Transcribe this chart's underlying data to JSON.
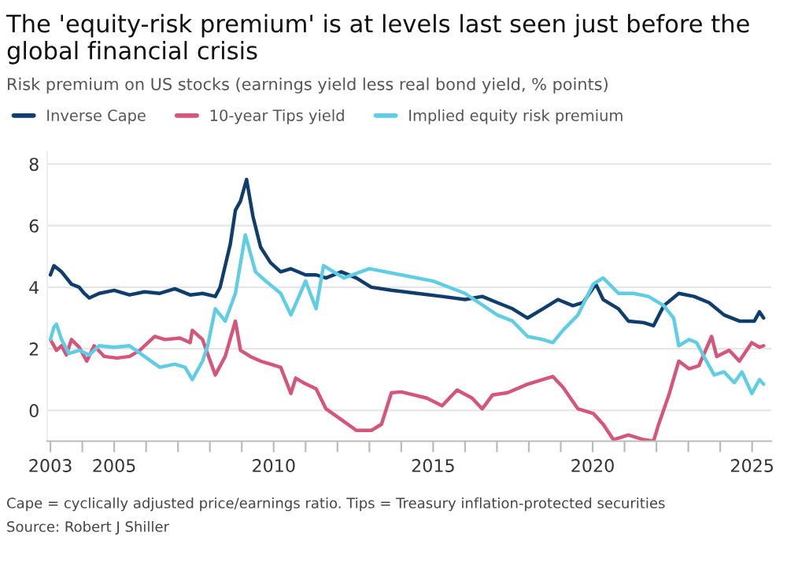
{
  "chart_data": {
    "type": "line",
    "title": "The 'equity-risk premium' is at levels last seen just before the global financial crisis",
    "subtitle": "Risk premium on US stocks (earnings yield less real bond yield, % points)",
    "annotations": [
      "Cape = cyclically adjusted price/earnings ratio. Tips = Treasury inflation-protected securities",
      "Source: Robert J Shiller"
    ],
    "xlim": [
      2002.9,
      2025.6
    ],
    "xticks": [
      2003,
      {
        "value": 2004,
        "label": null
      },
      2005,
      {
        "value": 2006,
        "label": null
      },
      {
        "value": 2007,
        "label": null
      },
      {
        "value": 2008,
        "label": null
      },
      {
        "value": 2009,
        "label": null
      },
      2010,
      {
        "value": 2011,
        "label": null
      },
      {
        "value": 2012,
        "label": null
      },
      {
        "value": 2013,
        "label": null
      },
      {
        "value": 2014,
        "label": null
      },
      2015,
      {
        "value": 2016,
        "label": null
      },
      {
        "value": 2017,
        "label": null
      },
      {
        "value": 2018,
        "label": null
      },
      {
        "value": 2019,
        "label": null
      },
      2020,
      {
        "value": 2021,
        "label": null
      },
      {
        "value": 2022,
        "label": null
      },
      {
        "value": 2023,
        "label": null
      },
      {
        "value": 2024,
        "label": null
      },
      2025
    ],
    "ylim": [
      -1,
      8.4
    ],
    "yticks": [
      0,
      2,
      4,
      6,
      8
    ],
    "grid": "y",
    "legend": "top",
    "line_style": "solid",
    "series": [
      {
        "name": "Inverse Cape",
        "color": "#0f3d6e",
        "x": [
          2003.0,
          2003.11,
          2003.35,
          2003.66,
          2003.9,
          2004.06,
          2004.22,
          2004.53,
          2005.0,
          2005.48,
          2005.95,
          2006.43,
          2006.9,
          2007.38,
          2007.77,
          2008.17,
          2008.32,
          2008.48,
          2008.64,
          2008.8,
          2008.96,
          2009.15,
          2009.35,
          2009.59,
          2009.9,
          2010.22,
          2010.54,
          2011.0,
          2011.33,
          2011.64,
          2012.12,
          2012.59,
          2013.06,
          2013.69,
          2014.5,
          2015.28,
          2016.0,
          2016.54,
          2017.01,
          2017.49,
          2017.96,
          2018.44,
          2018.91,
          2019.38,
          2019.7,
          2020.1,
          2020.33,
          2020.81,
          2021.12,
          2021.6,
          2021.91,
          2022.23,
          2022.7,
          2023.18,
          2023.65,
          2024.12,
          2024.6,
          2025.07,
          2025.23,
          2025.36
        ],
        "values": [
          4.4,
          4.7,
          4.5,
          4.1,
          4.0,
          3.8,
          3.65,
          3.8,
          3.9,
          3.75,
          3.85,
          3.8,
          3.95,
          3.75,
          3.8,
          3.7,
          4.0,
          4.7,
          5.4,
          6.5,
          6.8,
          7.5,
          6.3,
          5.3,
          4.8,
          4.5,
          4.6,
          4.4,
          4.4,
          4.3,
          4.5,
          4.3,
          4.0,
          3.9,
          3.8,
          3.7,
          3.6,
          3.7,
          3.5,
          3.3,
          3.0,
          3.3,
          3.6,
          3.4,
          3.5,
          4.1,
          3.6,
          3.3,
          2.9,
          2.85,
          2.75,
          3.4,
          3.8,
          3.7,
          3.5,
          3.1,
          2.9,
          2.9,
          3.2,
          3.0
        ]
      },
      {
        "name": "10-year Tips yield",
        "color": "#d6557a",
        "x": [
          2003.0,
          2003.19,
          2003.35,
          2003.5,
          2003.66,
          2003.9,
          2004.14,
          2004.37,
          2004.69,
          2005.09,
          2005.48,
          2005.8,
          2006.27,
          2006.59,
          2007.06,
          2007.38,
          2007.45,
          2007.77,
          2008.17,
          2008.48,
          2008.8,
          2008.96,
          2009.27,
          2009.59,
          2009.9,
          2010.22,
          2010.54,
          2010.69,
          2010.93,
          2011.33,
          2011.64,
          2012.12,
          2012.59,
          2013.06,
          2013.38,
          2013.69,
          2014.0,
          2014.8,
          2015.28,
          2015.75,
          2016.22,
          2016.54,
          2016.86,
          2017.33,
          2017.96,
          2018.75,
          2019.07,
          2019.54,
          2020.02,
          2020.33,
          2020.65,
          2021.12,
          2021.6,
          2021.91,
          2022.07,
          2022.39,
          2022.7,
          2023.02,
          2023.33,
          2023.73,
          2023.89,
          2024.28,
          2024.6,
          2024.99,
          2025.23,
          2025.36
        ],
        "values": [
          2.3,
          1.95,
          2.1,
          1.8,
          2.3,
          2.05,
          1.6,
          2.1,
          1.75,
          1.7,
          1.75,
          1.95,
          2.4,
          2.3,
          2.35,
          2.2,
          2.6,
          2.3,
          1.15,
          1.75,
          2.9,
          1.95,
          1.75,
          1.6,
          1.5,
          1.4,
          0.55,
          1.05,
          0.9,
          0.7,
          0.05,
          -0.3,
          -0.65,
          -0.65,
          -0.45,
          0.57,
          0.6,
          0.4,
          0.15,
          0.66,
          0.4,
          0.05,
          0.5,
          0.57,
          0.85,
          1.1,
          0.75,
          0.05,
          -0.1,
          -0.45,
          -0.95,
          -0.8,
          -0.95,
          -1.0,
          -0.45,
          0.5,
          1.6,
          1.35,
          1.45,
          2.4,
          1.75,
          1.95,
          1.6,
          2.2,
          2.05,
          2.1
        ]
      },
      {
        "name": "Implied equity risk premium",
        "color": "#5fcde4",
        "x": [
          2003.0,
          2003.11,
          2003.19,
          2003.35,
          2003.58,
          2003.9,
          2004.22,
          2004.53,
          2005.0,
          2005.48,
          2005.95,
          2006.43,
          2006.9,
          2007.22,
          2007.45,
          2007.77,
          2007.93,
          2008.17,
          2008.48,
          2008.8,
          2009.11,
          2009.43,
          2009.75,
          2010.22,
          2010.54,
          2011.0,
          2011.33,
          2011.56,
          2012.2,
          2013.0,
          2014.0,
          2015.0,
          2016.0,
          2017.01,
          2017.49,
          2017.96,
          2018.44,
          2018.75,
          2019.07,
          2019.54,
          2020.02,
          2020.33,
          2020.81,
          2021.28,
          2021.75,
          2022.23,
          2022.54,
          2022.7,
          2023.02,
          2023.26,
          2023.49,
          2023.81,
          2024.12,
          2024.44,
          2024.68,
          2024.99,
          2025.23,
          2025.36
        ],
        "values": [
          2.3,
          2.7,
          2.8,
          2.3,
          1.85,
          1.95,
          1.8,
          2.1,
          2.05,
          2.1,
          1.75,
          1.4,
          1.5,
          1.4,
          1.0,
          1.6,
          2.1,
          3.3,
          2.9,
          3.8,
          5.7,
          4.5,
          4.2,
          3.8,
          3.1,
          4.2,
          3.3,
          4.7,
          4.3,
          4.6,
          4.4,
          4.2,
          3.8,
          3.1,
          2.9,
          2.4,
          2.3,
          2.2,
          2.6,
          3.1,
          4.1,
          4.3,
          3.8,
          3.8,
          3.7,
          3.4,
          3.0,
          2.1,
          2.3,
          2.2,
          1.75,
          1.15,
          1.25,
          0.9,
          1.25,
          0.55,
          1.0,
          0.85
        ]
      }
    ]
  }
}
